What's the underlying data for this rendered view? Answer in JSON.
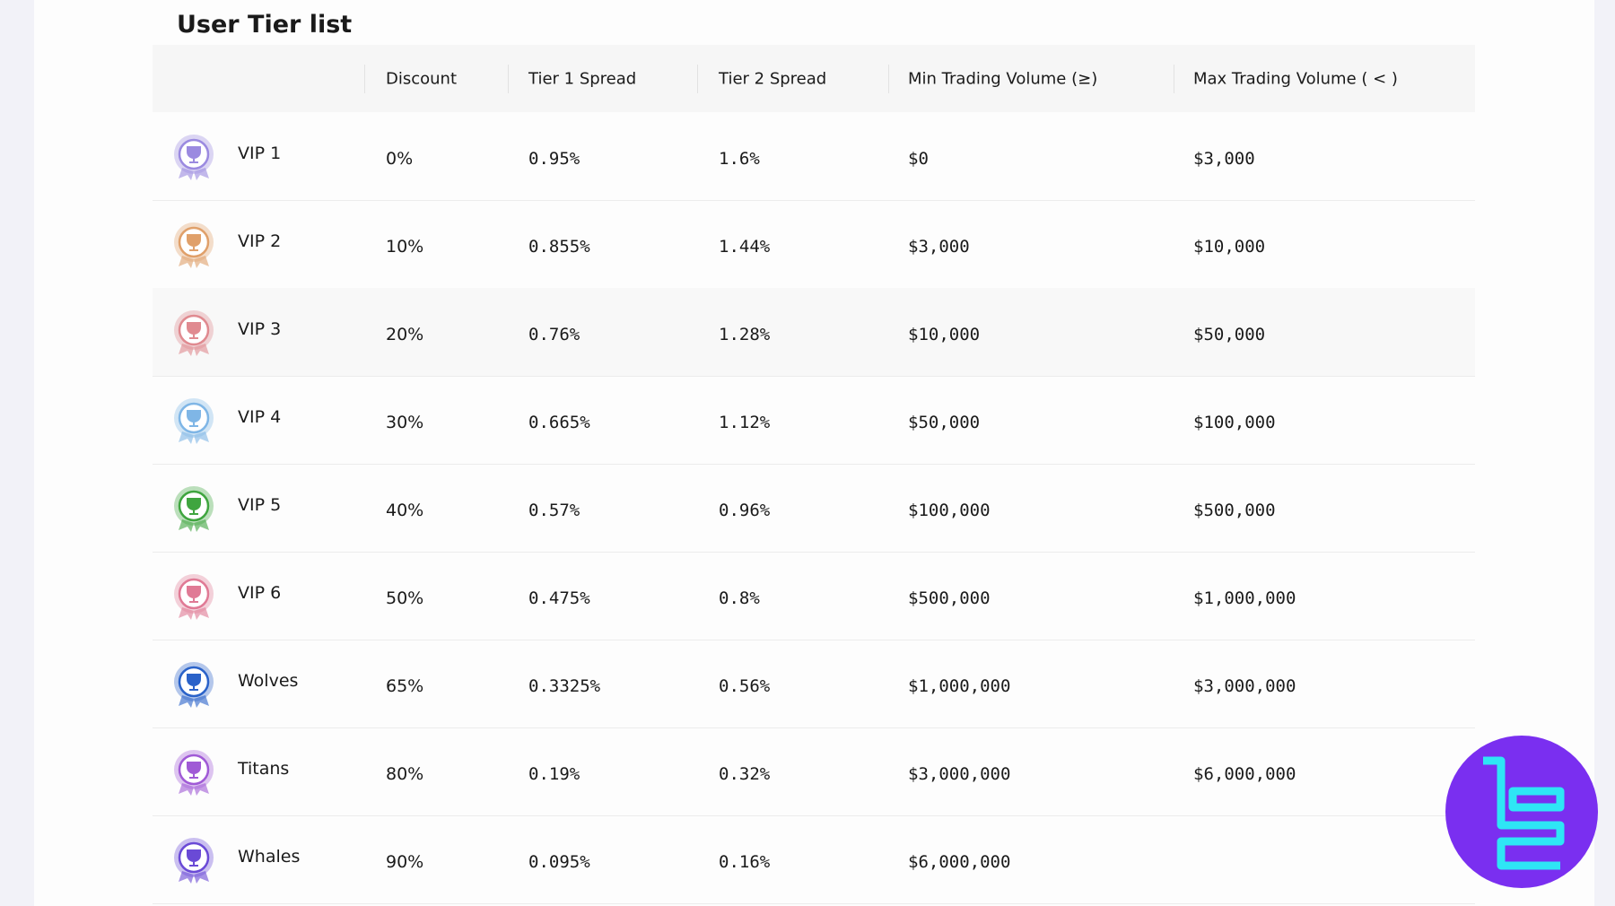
{
  "title": "User Tier list",
  "table": {
    "header": [
      "Discount",
      "Tier 1 Spread",
      "Tier 2 Spread",
      "Min Trading Volume (≥)",
      "Max Trading Volume ( < )"
    ],
    "rows": [
      [
        "VIP 1",
        "0%",
        "0.95%",
        "1.6%",
        "$0",
        "$3,000"
      ],
      [
        "VIP 2",
        "10%",
        "0.855%",
        "1.44%",
        "$3,000",
        "$10,000"
      ],
      [
        "VIP 3",
        "20%",
        "0.76%",
        "1.28%",
        "$10,000",
        "$50,000"
      ],
      [
        "VIP 4",
        "30%",
        "0.665%",
        "1.12%",
        "$50,000",
        "$100,000"
      ],
      [
        "VIP 5",
        "40%",
        "0.57%",
        "0.96%",
        "$100,000",
        "$500,000"
      ],
      [
        "VIP 6",
        "50%",
        "0.475%",
        "0.8%",
        "$500,000",
        "$1,000,000"
      ],
      [
        "Wolves",
        "65%",
        "0.3325%",
        "0.56%",
        "$1,000,000",
        "$3,000,000"
      ],
      [
        "Titans",
        "80%",
        "0.19%",
        "0.32%",
        "$3,000,000",
        "$6,000,000"
      ],
      [
        "Whales",
        "90%",
        "0.095%",
        "0.16%",
        "$6,000,000"
      ]
    ]
  }
}
